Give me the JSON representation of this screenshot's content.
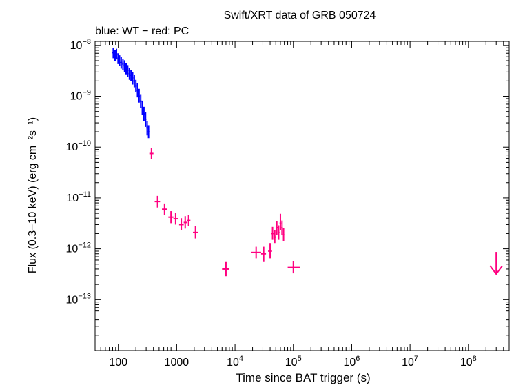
{
  "chart_data": {
    "type": "scatter",
    "title": "Swift/XRT data of GRB 050724",
    "subtitle": "blue: WT − red: PC",
    "xlabel": "Time since BAT trigger (s)",
    "ylabel": "Flux (0.3−10 keV) (erg cm⁻²s⁻¹)",
    "x_scale": "log",
    "y_scale": "log",
    "xlim": [
      40,
      500000000
    ],
    "ylim": [
      1e-14,
      1.2e-08
    ],
    "x_ticks": [
      {
        "value": 100,
        "label": "100"
      },
      {
        "value": 1000,
        "label": "1000"
      },
      {
        "value": 10000,
        "base": "10",
        "exp": "4"
      },
      {
        "value": 100000,
        "base": "10",
        "exp": "5"
      },
      {
        "value": 1000000,
        "base": "10",
        "exp": "6"
      },
      {
        "value": 10000000,
        "base": "10",
        "exp": "7"
      },
      {
        "value": 100000000,
        "base": "10",
        "exp": "8"
      }
    ],
    "y_ticks": [
      {
        "value": 1e-08,
        "base": "10",
        "exp": "−8"
      },
      {
        "value": 1e-09,
        "base": "10",
        "exp": "−9"
      },
      {
        "value": 1e-10,
        "base": "10",
        "exp": "−10"
      },
      {
        "value": 1e-11,
        "base": "10",
        "exp": "−11"
      },
      {
        "value": 1e-12,
        "base": "10",
        "exp": "−12"
      },
      {
        "value": 1e-13,
        "base": "10",
        "exp": "−13"
      }
    ],
    "grid": false,
    "colors": {
      "WT": "#0000ff",
      "PC": "#ff0080"
    },
    "series": [
      {
        "name": "WT",
        "points": [
          [
            82,
            7.2e-09,
            78,
            86,
            5.6e-09,
            9e-09
          ],
          [
            88,
            6.5e-09,
            86,
            90,
            5e-09,
            8.2e-09
          ],
          [
            93,
            6.8e-09,
            90,
            96,
            5.3e-09,
            8.6e-09
          ],
          [
            99,
            5.6e-09,
            96,
            102,
            4.3e-09,
            7e-09
          ],
          [
            105,
            5e-09,
            102,
            108,
            3.9e-09,
            6.4e-09
          ],
          [
            112,
            4.6e-09,
            108,
            116,
            3.5e-09,
            5.9e-09
          ],
          [
            120,
            4.3e-09,
            116,
            124,
            3.3e-09,
            5.5e-09
          ],
          [
            128,
            4e-09,
            124,
            132,
            3e-09,
            5.1e-09
          ],
          [
            136,
            3.5e-09,
            132,
            140,
            2.7e-09,
            4.5e-09
          ],
          [
            145,
            3.2e-09,
            140,
            150,
            2.4e-09,
            4.1e-09
          ],
          [
            155,
            2.8e-09,
            150,
            160,
            2.1e-09,
            3.6e-09
          ],
          [
            165,
            2.6e-09,
            160,
            170,
            2e-09,
            3.3e-09
          ],
          [
            176,
            2.3e-09,
            170,
            182,
            1.7e-09,
            3e-09
          ],
          [
            188,
            2e-09,
            182,
            194,
            1.5e-09,
            2.6e-09
          ],
          [
            200,
            1.6e-09,
            194,
            206,
            1.2e-09,
            2.1e-09
          ],
          [
            213,
            1.3e-09,
            206,
            220,
            9.5e-10,
            1.8e-09
          ],
          [
            227,
            1e-09,
            220,
            234,
            7.5e-10,
            1.4e-09
          ],
          [
            242,
            8e-10,
            234,
            250,
            5.8e-10,
            1.1e-09
          ],
          [
            258,
            6e-10,
            250,
            266,
            4.3e-10,
            8.2e-10
          ],
          [
            275,
            4.5e-10,
            266,
            284,
            3.2e-10,
            6.2e-10
          ],
          [
            293,
            3.5e-10,
            284,
            302,
            2.5e-10,
            4.9e-10
          ],
          [
            312,
            2.4e-10,
            302,
            322,
            1.7e-10,
            3.3e-10
          ],
          [
            330,
            2e-10,
            322,
            340,
            1.5e-10,
            2.7e-10
          ]
        ]
      },
      {
        "name": "PC",
        "points": [
          [
            370,
            7.5e-11,
            340,
            400,
            5.8e-11,
            9.5e-11
          ],
          [
            470,
            8.5e-12,
            420,
            520,
            6.5e-12,
            1.1e-11
          ],
          [
            620,
            6e-12,
            560,
            690,
            4.6e-12,
            7.8e-12
          ],
          [
            800,
            4.2e-12,
            720,
            880,
            3.2e-12,
            5.5e-12
          ],
          [
            960,
            3.9e-12,
            880,
            1050,
            3e-12,
            5.1e-12
          ],
          [
            1200,
            3e-12,
            1100,
            1320,
            2.3e-12,
            4e-12
          ],
          [
            1400,
            3.3e-12,
            1320,
            1500,
            2.5e-12,
            4.4e-12
          ],
          [
            1600,
            3.6e-12,
            1500,
            1720,
            2.8e-12,
            4.7e-12
          ],
          [
            2100,
            2.1e-12,
            1900,
            2300,
            1.6e-12,
            2.8e-12
          ],
          [
            7000,
            4e-13,
            6000,
            8000,
            2.9e-13,
            5.5e-13
          ],
          [
            23000,
            8.5e-13,
            19000,
            28000,
            6.5e-13,
            1.1e-12
          ],
          [
            31000,
            8e-13,
            28000,
            34000,
            5.5e-13,
            1.1e-12
          ],
          [
            40000,
            9e-13,
            37000,
            43000,
            6.5e-13,
            1.3e-12
          ],
          [
            44000,
            2e-12,
            42000,
            46000,
            1.5e-12,
            2.7e-12
          ],
          [
            48000,
            1.7e-12,
            46000,
            50000,
            1.3e-12,
            2.3e-12
          ],
          [
            52000,
            2.6e-12,
            50000,
            54000,
            1.9e-12,
            3.5e-12
          ],
          [
            56000,
            2.1e-12,
            54000,
            58000,
            1.5e-12,
            2.9e-12
          ],
          [
            60000,
            3.2e-12,
            58000,
            62000,
            2.3e-12,
            4.9e-12
          ],
          [
            64000,
            2.6e-12,
            62000,
            66000,
            1.9e-12,
            3.6e-12
          ],
          [
            68000,
            1.9e-12,
            66000,
            70000,
            1.4e-12,
            2.6e-12
          ],
          [
            100000,
            4.3e-13,
            80000,
            130000,
            3.3e-13,
            5.7e-13
          ]
        ]
      }
    ],
    "upper_limits": [
      {
        "series": "PC",
        "x": 300000000,
        "y": 3.2e-13
      }
    ]
  }
}
